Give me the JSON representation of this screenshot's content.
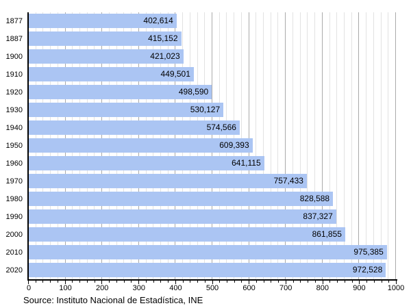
{
  "chart_data": {
    "type": "bar",
    "orientation": "horizontal",
    "title": "",
    "xlabel": "",
    "ylabel": "",
    "categories": [
      "1877",
      "1887",
      "1900",
      "1910",
      "1920",
      "1930",
      "1940",
      "1950",
      "1960",
      "1970",
      "1980",
      "1990",
      "2000",
      "2010",
      "2020"
    ],
    "values": [
      402614,
      415152,
      421023,
      449501,
      498590,
      530127,
      574566,
      609393,
      641115,
      757433,
      828588,
      837327,
      861855,
      975385,
      972528
    ],
    "value_labels": [
      "402,614",
      "415,152",
      "421,023",
      "449,501",
      "498,590",
      "530,127",
      "574,566",
      "609,393",
      "641,115",
      "757,433",
      "828,588",
      "837,327",
      "861,855",
      "975,385",
      "972,528"
    ],
    "x_axis": {
      "min": 0,
      "max": 1000000,
      "major_step": 100000,
      "minor_step": 20000,
      "tick_labels": [
        "0",
        "100",
        "200",
        "300",
        "400",
        "500",
        "600",
        "700",
        "800",
        "900",
        "1000"
      ]
    },
    "grid": "on",
    "legend": "none",
    "colors": {
      "bar_fill": "#abc5f3",
      "grid_major": "#aaaaaa",
      "grid_minor": "#e2e2e2",
      "axis": "#000000",
      "text": "#000000"
    }
  },
  "source_note": "Source: Instituto Nacional de Estadística, INE"
}
